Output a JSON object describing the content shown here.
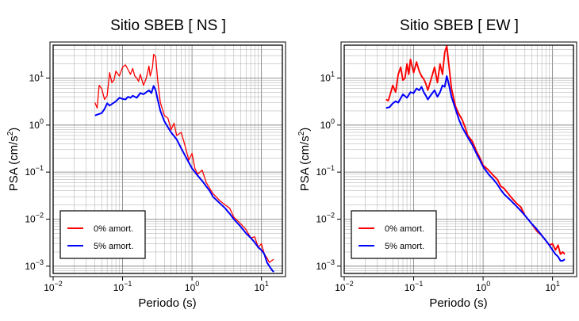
{
  "chart_data": [
    {
      "type": "line",
      "title": "Sitio SBEB [ NS ]",
      "xlabel": "Periodo (s)",
      "ylabel_main": "PSA (cm/s",
      "ylabel_sup": "2",
      "ylabel_end": ")",
      "xscale": "log",
      "yscale": "log",
      "xlim": [
        0.01,
        20
      ],
      "ylim": [
        0.0007,
        50
      ],
      "xticks": [
        {
          "value": 0.01,
          "base": "10",
          "exp": "−2"
        },
        {
          "value": 0.1,
          "base": "10",
          "exp": "−1"
        },
        {
          "value": 1,
          "base": "10",
          "exp": "0"
        },
        {
          "value": 10,
          "base": "10",
          "exp": "1"
        }
      ],
      "yticks": [
        {
          "value": 0.001,
          "base": "10",
          "exp": "−3"
        },
        {
          "value": 0.01,
          "base": "10",
          "exp": "−2"
        },
        {
          "value": 0.1,
          "base": "10",
          "exp": "−1"
        },
        {
          "value": 1,
          "base": "10",
          "exp": "0"
        },
        {
          "value": 10,
          "base": "10",
          "exp": "1"
        }
      ],
      "grid": true,
      "legend_position": "bottom-left",
      "series": [
        {
          "name": "0% amort.",
          "color": "#ff0000",
          "x": [
            0.04,
            0.043,
            0.046,
            0.05,
            0.055,
            0.06,
            0.065,
            0.07,
            0.075,
            0.08,
            0.09,
            0.1,
            0.11,
            0.12,
            0.13,
            0.14,
            0.15,
            0.16,
            0.17,
            0.18,
            0.2,
            0.22,
            0.24,
            0.25,
            0.27,
            0.28,
            0.3,
            0.32,
            0.35,
            0.4,
            0.45,
            0.5,
            0.55,
            0.6,
            0.7,
            0.8,
            0.9,
            1.0,
            1.1,
            1.2,
            1.4,
            1.6,
            1.8,
            2.0,
            2.5,
            3.0,
            3.5,
            4.0,
            5.0,
            6.0,
            7.0,
            8.0,
            9.0,
            10,
            11,
            12,
            13,
            14,
            15
          ],
          "y": [
            3.0,
            2.3,
            7.0,
            6.0,
            3.5,
            4.2,
            13,
            8,
            9,
            14,
            11,
            17,
            19,
            15,
            12,
            16,
            11,
            10,
            8.5,
            12,
            7,
            10,
            18,
            11,
            17,
            32,
            28,
            9,
            3,
            1.6,
            1.4,
            0.8,
            1.1,
            0.6,
            0.7,
            0.35,
            0.18,
            0.25,
            0.12,
            0.09,
            0.11,
            0.06,
            0.045,
            0.035,
            0.025,
            0.02,
            0.017,
            0.011,
            0.008,
            0.006,
            0.004,
            0.0042,
            0.0025,
            0.003,
            0.0018,
            0.0015,
            0.0012,
            0.0013,
            0.0014
          ]
        },
        {
          "name": "5% amort.",
          "color": "#0000ff",
          "x": [
            0.04,
            0.045,
            0.05,
            0.055,
            0.06,
            0.065,
            0.07,
            0.08,
            0.09,
            0.1,
            0.11,
            0.12,
            0.13,
            0.14,
            0.15,
            0.16,
            0.18,
            0.2,
            0.22,
            0.24,
            0.26,
            0.28,
            0.3,
            0.32,
            0.35,
            0.4,
            0.45,
            0.5,
            0.6,
            0.7,
            0.8,
            0.9,
            1.0,
            1.2,
            1.4,
            1.6,
            1.8,
            2.0,
            2.5,
            3.0,
            3.5,
            4.0,
            5.0,
            6.0,
            7.0,
            8.0,
            9.0,
            10,
            11,
            12,
            13,
            14,
            15
          ],
          "y": [
            1.6,
            1.7,
            1.8,
            2.2,
            2.9,
            2.6,
            2.8,
            3.2,
            3.8,
            3.6,
            3.5,
            4.0,
            3.8,
            4.2,
            4.0,
            3.8,
            4.8,
            4.5,
            5.0,
            5.5,
            4.8,
            6.8,
            5.5,
            3.5,
            2.0,
            1.2,
            0.9,
            0.7,
            0.5,
            0.32,
            0.22,
            0.16,
            0.12,
            0.085,
            0.065,
            0.05,
            0.04,
            0.03,
            0.022,
            0.017,
            0.013,
            0.01,
            0.007,
            0.005,
            0.004,
            0.0032,
            0.0025,
            0.0022,
            0.0018,
            0.0012,
            0.001,
            0.00085,
            0.00075
          ]
        }
      ]
    },
    {
      "type": "line",
      "title": "Sitio SBEB [ EW ]",
      "xlabel": "Periodo (s)",
      "ylabel_main": "PSA (cm/s",
      "ylabel_sup": "2",
      "ylabel_end": ")",
      "xscale": "log",
      "yscale": "log",
      "xlim": [
        0.01,
        20
      ],
      "ylim": [
        0.0007,
        50
      ],
      "xticks": [
        {
          "value": 0.01,
          "base": "10",
          "exp": "−2"
        },
        {
          "value": 0.1,
          "base": "10",
          "exp": "−1"
        },
        {
          "value": 1,
          "base": "10",
          "exp": "0"
        },
        {
          "value": 10,
          "base": "10",
          "exp": "1"
        }
      ],
      "yticks": [
        {
          "value": 0.001,
          "base": "10",
          "exp": "−3"
        },
        {
          "value": 0.01,
          "base": "10",
          "exp": "−2"
        },
        {
          "value": 0.1,
          "base": "10",
          "exp": "−1"
        },
        {
          "value": 1,
          "base": "10",
          "exp": "0"
        },
        {
          "value": 10,
          "base": "10",
          "exp": "1"
        }
      ],
      "grid": true,
      "legend_position": "bottom-left",
      "series": [
        {
          "name": "0% amort.",
          "color": "#ff0000",
          "x": [
            0.04,
            0.043,
            0.046,
            0.05,
            0.055,
            0.06,
            0.065,
            0.07,
            0.075,
            0.08,
            0.085,
            0.09,
            0.1,
            0.11,
            0.12,
            0.13,
            0.14,
            0.15,
            0.16,
            0.18,
            0.2,
            0.22,
            0.24,
            0.26,
            0.28,
            0.3,
            0.32,
            0.35,
            0.4,
            0.45,
            0.5,
            0.55,
            0.6,
            0.7,
            0.8,
            0.9,
            1.0,
            1.2,
            1.4,
            1.6,
            1.8,
            2.0,
            2.5,
            3.0,
            3.5,
            4.0,
            5.0,
            6.0,
            7.0,
            8.0,
            9.0,
            10,
            11,
            12,
            13,
            14,
            15
          ],
          "y": [
            3.5,
            3.3,
            4.5,
            7.0,
            5.0,
            12,
            17,
            9,
            10,
            20,
            12,
            25,
            13,
            22,
            14,
            11,
            9.5,
            7.5,
            5.5,
            10,
            17,
            8,
            20,
            12,
            35,
            48,
            20,
            6,
            2.5,
            1.7,
            1.3,
            0.9,
            0.6,
            0.45,
            0.28,
            0.2,
            0.14,
            0.11,
            0.085,
            0.07,
            0.05,
            0.045,
            0.03,
            0.022,
            0.018,
            0.012,
            0.008,
            0.0055,
            0.0045,
            0.0035,
            0.0028,
            0.003,
            0.0022,
            0.0028,
            0.0018,
            0.002,
            0.0018
          ]
        },
        {
          "name": "5% amort.",
          "color": "#0000ff",
          "x": [
            0.04,
            0.045,
            0.05,
            0.055,
            0.06,
            0.07,
            0.08,
            0.09,
            0.1,
            0.11,
            0.12,
            0.13,
            0.14,
            0.15,
            0.16,
            0.18,
            0.2,
            0.22,
            0.24,
            0.26,
            0.28,
            0.3,
            0.32,
            0.35,
            0.4,
            0.45,
            0.5,
            0.6,
            0.7,
            0.8,
            0.9,
            1.0,
            1.2,
            1.4,
            1.6,
            1.8,
            2.0,
            2.5,
            3.0,
            3.5,
            4.0,
            5.0,
            6.0,
            7.0,
            8.0,
            9.0,
            10,
            11,
            12,
            13,
            14,
            15
          ],
          "y": [
            2.3,
            2.4,
            2.9,
            3.2,
            3.0,
            4.5,
            3.8,
            5.0,
            4.8,
            6.0,
            5.5,
            6.5,
            5.0,
            4.2,
            3.5,
            4.5,
            5.5,
            4.0,
            5.0,
            7.0,
            6.5,
            11,
            7.5,
            4.0,
            2.2,
            1.3,
            0.9,
            0.55,
            0.38,
            0.25,
            0.18,
            0.13,
            0.09,
            0.07,
            0.055,
            0.042,
            0.034,
            0.025,
            0.019,
            0.015,
            0.012,
            0.008,
            0.006,
            0.0045,
            0.0035,
            0.0028,
            0.0022,
            0.0018,
            0.0016,
            0.0013,
            0.0013,
            0.0014
          ]
        }
      ]
    }
  ]
}
